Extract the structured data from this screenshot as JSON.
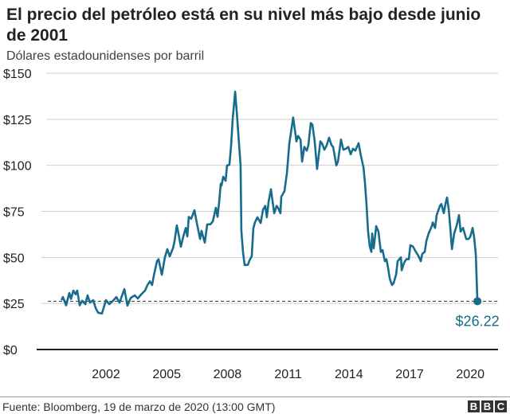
{
  "header": {
    "title": "El precio del petróleo está en su nivel más bajo desde junio de 2001",
    "subtitle": "Dólares estadounidenses por barril"
  },
  "footer": {
    "source": "Fuente: Bloomberg, 19 de marzo de 2020 (13:00 GMT)",
    "logo": [
      "B",
      "B",
      "C"
    ]
  },
  "chart_data": {
    "type": "line",
    "title": "El precio del petróleo está en su nivel más bajo desde junio de 2001",
    "ylabel": "Dólares estadounidenses por barril",
    "xlabel": "",
    "ylim": [
      0,
      150
    ],
    "yticks": [
      0,
      25,
      50,
      75,
      100,
      125,
      150
    ],
    "ytick_labels": [
      "$0",
      "$25",
      "$50",
      "$75",
      "$100",
      "$125",
      "$150"
    ],
    "xticks": [
      2002,
      2005,
      2008,
      2011,
      2014,
      2017,
      2020
    ],
    "xtick_labels": [
      "2002",
      "2005",
      "2008",
      "2011",
      "2014",
      "2017",
      "2020"
    ],
    "grid": "horizontal",
    "line_color": "#176b8c",
    "reference_line": {
      "value": 26.22,
      "style": "dashed"
    },
    "end_label": "$26.22",
    "series": [
      {
        "x": [
          1999.8,
          1999.87,
          2000.03,
          2000.19,
          2000.27,
          2000.39,
          2000.5,
          2000.58,
          2000.7,
          2000.82,
          2000.98,
          2001.09,
          2001.21,
          2001.37,
          2001.49,
          2001.61,
          2001.8,
          2002.0,
          2002.16,
          2002.35,
          2002.51,
          2002.67,
          2002.91,
          2003.06,
          2003.22,
          2003.42,
          2003.57,
          2003.77,
          2003.93,
          2004.05,
          2004.17,
          2004.28,
          2004.36,
          2004.52,
          2004.6,
          2004.76,
          2004.91,
          2005.03,
          2005.15,
          2005.31,
          2005.39,
          2005.5,
          2005.58,
          2005.7,
          2005.82,
          2005.94,
          2006.02,
          2006.09,
          2006.21,
          2006.37,
          2006.49,
          2006.65,
          2006.72,
          2006.88,
          2007.0,
          2007.16,
          2007.28,
          2007.35,
          2007.43,
          2007.51,
          2007.59,
          2007.67,
          2007.71,
          2007.79,
          2007.91,
          2007.98,
          2008.1,
          2008.18,
          2008.26,
          2008.38,
          2008.46,
          2008.57,
          2008.65,
          2008.69,
          2008.77,
          2008.85,
          2009.01,
          2009.09,
          2009.2,
          2009.28,
          2009.36,
          2009.48,
          2009.64,
          2009.76,
          2009.87,
          2009.95,
          2010.03,
          2010.15,
          2010.31,
          2010.43,
          2010.5,
          2010.62,
          2010.66,
          2010.82,
          2010.94,
          2011.06,
          2011.25,
          2011.41,
          2011.49,
          2011.61,
          2011.69,
          2011.8,
          2011.92,
          2012.0,
          2012.12,
          2012.2,
          2012.31,
          2012.43,
          2012.59,
          2012.67,
          2012.79,
          2012.91,
          2013.02,
          2013.14,
          2013.22,
          2013.38,
          2013.46,
          2013.61,
          2013.73,
          2013.85,
          2013.97,
          2014.09,
          2014.2,
          2014.32,
          2014.48,
          2014.6,
          2014.72,
          2014.8,
          2014.87,
          2014.95,
          2015.03,
          2015.11,
          2015.15,
          2015.23,
          2015.35,
          2015.46,
          2015.58,
          2015.66,
          2015.78,
          2015.86,
          2015.94,
          2016.02,
          2016.13,
          2016.21,
          2016.33,
          2016.41,
          2016.57,
          2016.61,
          2016.72,
          2016.84,
          2016.96,
          2017.04,
          2017.16,
          2017.31,
          2017.43,
          2017.55,
          2017.63,
          2017.75,
          2017.83,
          2017.94,
          2018.1,
          2018.14,
          2018.26,
          2018.34,
          2018.5,
          2018.57,
          2018.69,
          2018.77,
          2018.85,
          2018.93,
          2019.01,
          2019.09,
          2019.2,
          2019.32,
          2019.44,
          2019.52,
          2019.64,
          2019.72,
          2019.8,
          2019.91,
          2019.99,
          2020.07,
          2020.11,
          2020.19,
          2020.27,
          2020.35
        ],
        "y": [
          26.8,
          28.5,
          24,
          30.7,
          27.5,
          32,
          30,
          32,
          24,
          26.5,
          24.6,
          29.4,
          25.5,
          26.8,
          22.5,
          20,
          19.5,
          26.8,
          24.6,
          26.5,
          28.5,
          25.5,
          32.8,
          23.8,
          28,
          29.4,
          27.7,
          30.3,
          32,
          35,
          37,
          35,
          39.8,
          48,
          49,
          40.6,
          50,
          54.5,
          50.6,
          55,
          59,
          67.4,
          63,
          55.8,
          61.4,
          66,
          61.4,
          72,
          71,
          75.6,
          68.7,
          60,
          64.4,
          58,
          67.9,
          68,
          69.6,
          73,
          77,
          72,
          80,
          90,
          89,
          93.8,
          91.6,
          99.9,
          100.3,
          110.7,
          125,
          140,
          129,
          112,
          100,
          64.4,
          52.7,
          45.8,
          46,
          48.4,
          50.6,
          65.7,
          69,
          71.8,
          68.7,
          76,
          78,
          71.8,
          80,
          87,
          74,
          78,
          77,
          74,
          83,
          86,
          96,
          112,
          126,
          113,
          116,
          114,
          102,
          110,
          108,
          111,
          123,
          122,
          113,
          98,
          113,
          112,
          108.5,
          111,
          115,
          111,
          110,
          100,
          102,
          114,
          108.5,
          109,
          110,
          106,
          109,
          108,
          112,
          105,
          99,
          90,
          79,
          64,
          56,
          53,
          63,
          55,
          67,
          64,
          53,
          54,
          48,
          49,
          44,
          38.5,
          35,
          36,
          40.6,
          48,
          50,
          43,
          47,
          49,
          49,
          56.6,
          56,
          53,
          51,
          48,
          52,
          53,
          59,
          63,
          67,
          69,
          66,
          73,
          78,
          79,
          74,
          79,
          82.5,
          76.5,
          66,
          54.5,
          63,
          67,
          73,
          64,
          66,
          63,
          60,
          60,
          61,
          64,
          66,
          61,
          51.5,
          26.22
        ]
      }
    ]
  }
}
